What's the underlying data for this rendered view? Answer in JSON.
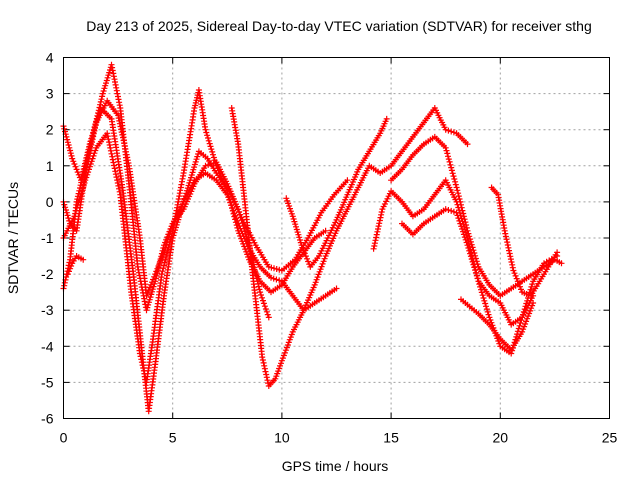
{
  "chart_data": {
    "type": "scatter",
    "title": "Day 213 of 2025, Sidereal Day-to-day VTEC variation (SDTVAR) for receiver sthg",
    "xlabel": "GPS time / hours",
    "ylabel": "SDTVAR / TECUs",
    "xlim": [
      0,
      25
    ],
    "ylim": [
      -6,
      4
    ],
    "xticks": [
      "0",
      "5",
      "10",
      "15",
      "20",
      "25"
    ],
    "yticks": [
      "-6",
      "-5",
      "-4",
      "-3",
      "-2",
      "-1",
      "0",
      "1",
      "2",
      "3",
      "4"
    ],
    "grid": true,
    "marker": "plus",
    "color": "#ff0000",
    "series": [
      {
        "x": [
          0.0,
          0.3,
          0.6,
          1.0,
          1.4,
          1.8,
          2.2,
          2.6,
          3.0,
          3.4,
          3.8,
          4.2,
          4.6,
          5.0,
          5.5,
          6.0,
          6.5,
          7.0,
          7.5,
          8.0,
          8.5,
          9.0,
          9.4
        ],
        "y": [
          -2.4,
          -1.6,
          0.0,
          1.0,
          2.0,
          3.0,
          3.8,
          2.6,
          0.5,
          -1.8,
          -3.0,
          -2.2,
          -1.2,
          -0.6,
          -0.2,
          0.5,
          1.0,
          1.1,
          0.5,
          -0.2,
          -1.2,
          -2.5,
          -3.2
        ]
      },
      {
        "x": [
          0.0,
          0.3,
          0.6,
          1.0,
          1.5,
          2.0,
          2.5,
          3.0,
          3.5,
          3.8,
          4.2,
          4.6,
          5.0,
          5.5,
          6.0,
          6.5,
          7.0,
          7.5,
          8.0,
          8.5,
          9.0,
          9.5,
          10.0,
          10.5,
          11.0,
          11.5,
          12.0,
          12.5
        ],
        "y": [
          0.0,
          -0.6,
          -0.8,
          0.8,
          2.2,
          2.8,
          2.4,
          1.0,
          -1.0,
          -2.6,
          -2.0,
          -1.4,
          -0.6,
          0.0,
          0.6,
          0.8,
          0.6,
          0.2,
          -0.6,
          -1.3,
          -1.8,
          -2.1,
          -2.2,
          -2.6,
          -3.0,
          -2.8,
          -2.6,
          -2.4
        ]
      },
      {
        "x": [
          0.0,
          0.4,
          0.8,
          1.2,
          1.7,
          2.2,
          2.7,
          3.2,
          3.6,
          3.9,
          4.2,
          4.6,
          5.0,
          5.4,
          5.8,
          6.2,
          6.6,
          7.0,
          7.6,
          8.2,
          8.8,
          9.4,
          10.0,
          10.6,
          11.2,
          11.8,
          12.4,
          13.0
        ],
        "y": [
          2.1,
          1.2,
          0.6,
          1.6,
          2.6,
          2.3,
          0.4,
          -2.0,
          -4.2,
          -5.8,
          -4.5,
          -2.6,
          -1.0,
          -0.2,
          0.6,
          1.4,
          1.2,
          0.8,
          0.3,
          -0.5,
          -1.2,
          -1.8,
          -1.9,
          -1.6,
          -1.0,
          -0.3,
          0.2,
          0.6
        ]
      },
      {
        "x": [
          0.0,
          0.5,
          1.0,
          1.5,
          2.0,
          2.6,
          3.1,
          3.5,
          3.8,
          4.1,
          4.5,
          5.0,
          5.5,
          6.0,
          6.2,
          6.5,
          7.0,
          7.5,
          8.0,
          8.5,
          9.0,
          9.5,
          10.0,
          10.5,
          11.0,
          11.5,
          12.0
        ],
        "y": [
          -1.0,
          -0.4,
          0.6,
          1.5,
          1.9,
          0.2,
          -2.5,
          -4.2,
          -5.0,
          -3.8,
          -2.0,
          -0.8,
          0.8,
          2.6,
          3.1,
          2.0,
          1.0,
          0.3,
          -0.8,
          -1.6,
          -2.2,
          -2.5,
          -2.3,
          -1.8,
          -1.4,
          -1.0,
          -0.8
        ]
      },
      {
        "x": [
          7.7,
          8.0,
          8.3,
          8.7,
          9.1,
          9.4,
          9.7,
          10.0,
          10.5,
          11.0,
          11.5,
          12.0,
          12.5,
          13.0,
          13.5,
          14.0,
          14.5,
          15.0,
          15.5,
          16.0,
          16.5,
          17.0,
          17.5,
          18.0,
          18.5
        ],
        "y": [
          2.6,
          1.6,
          0.0,
          -2.2,
          -4.3,
          -5.1,
          -4.9,
          -4.4,
          -3.6,
          -3.0,
          -2.3,
          -1.5,
          -0.8,
          -0.2,
          0.4,
          1.0,
          0.8,
          1.0,
          1.4,
          1.8,
          2.2,
          2.6,
          2.0,
          1.9,
          1.6
        ]
      },
      {
        "x": [
          10.2,
          10.5,
          10.9,
          11.3,
          11.7,
          12.1,
          12.5,
          13.0,
          13.5,
          14.0,
          14.5,
          14.8
        ],
        "y": [
          0.1,
          -0.4,
          -1.2,
          -1.8,
          -1.5,
          -1.0,
          -0.5,
          0.2,
          0.9,
          1.4,
          1.9,
          2.3
        ]
      },
      {
        "x": [
          14.2,
          14.6,
          15.0,
          15.5,
          16.0,
          16.5,
          17.0,
          17.5,
          18.0,
          18.5,
          19.0,
          19.5,
          20.0,
          20.5,
          21.0,
          21.5,
          22.0,
          22.6
        ],
        "y": [
          -1.3,
          -0.2,
          0.3,
          0.0,
          -0.4,
          -0.2,
          0.2,
          0.6,
          0.0,
          -1.0,
          -2.2,
          -3.2,
          -4.0,
          -4.2,
          -3.2,
          -2.2,
          -1.7,
          -1.5
        ]
      },
      {
        "x": [
          15.0,
          15.5,
          16.0,
          16.5,
          17.0,
          17.5,
          18.0,
          18.5,
          19.0,
          19.5,
          20.0,
          20.5,
          21.0,
          21.5,
          22.0,
          22.5,
          22.8
        ],
        "y": [
          0.6,
          0.9,
          1.3,
          1.6,
          1.8,
          1.5,
          0.4,
          -0.8,
          -1.8,
          -2.3,
          -2.6,
          -2.4,
          -2.2,
          -2.0,
          -1.8,
          -1.6,
          -1.7
        ]
      },
      {
        "x": [
          15.5,
          16.0,
          16.5,
          17.0,
          17.5,
          18.0,
          18.5,
          19.0,
          19.5,
          20.0,
          20.5,
          21.0,
          21.5
        ],
        "y": [
          -0.6,
          -0.9,
          -0.6,
          -0.4,
          -0.2,
          -0.3,
          -1.2,
          -2.2,
          -2.6,
          -2.8,
          -3.4,
          -3.2,
          -2.6
        ]
      },
      {
        "x": [
          18.2,
          18.6,
          19.0,
          19.5,
          20.0,
          20.5,
          21.0,
          21.5
        ],
        "y": [
          -2.7,
          -2.9,
          -3.1,
          -3.4,
          -3.8,
          -4.1,
          -3.6,
          -2.8
        ]
      },
      {
        "x": [
          19.6,
          19.9,
          20.2,
          20.6,
          21.0,
          21.4,
          21.8,
          22.2,
          22.6
        ],
        "y": [
          0.4,
          0.2,
          -0.8,
          -1.9,
          -2.5,
          -2.6,
          -2.2,
          -1.8,
          -1.4
        ]
      },
      {
        "x": [
          0.2,
          0.4,
          0.6,
          0.9
        ],
        "y": [
          -2.0,
          -1.7,
          -1.5,
          -1.6
        ]
      }
    ]
  }
}
